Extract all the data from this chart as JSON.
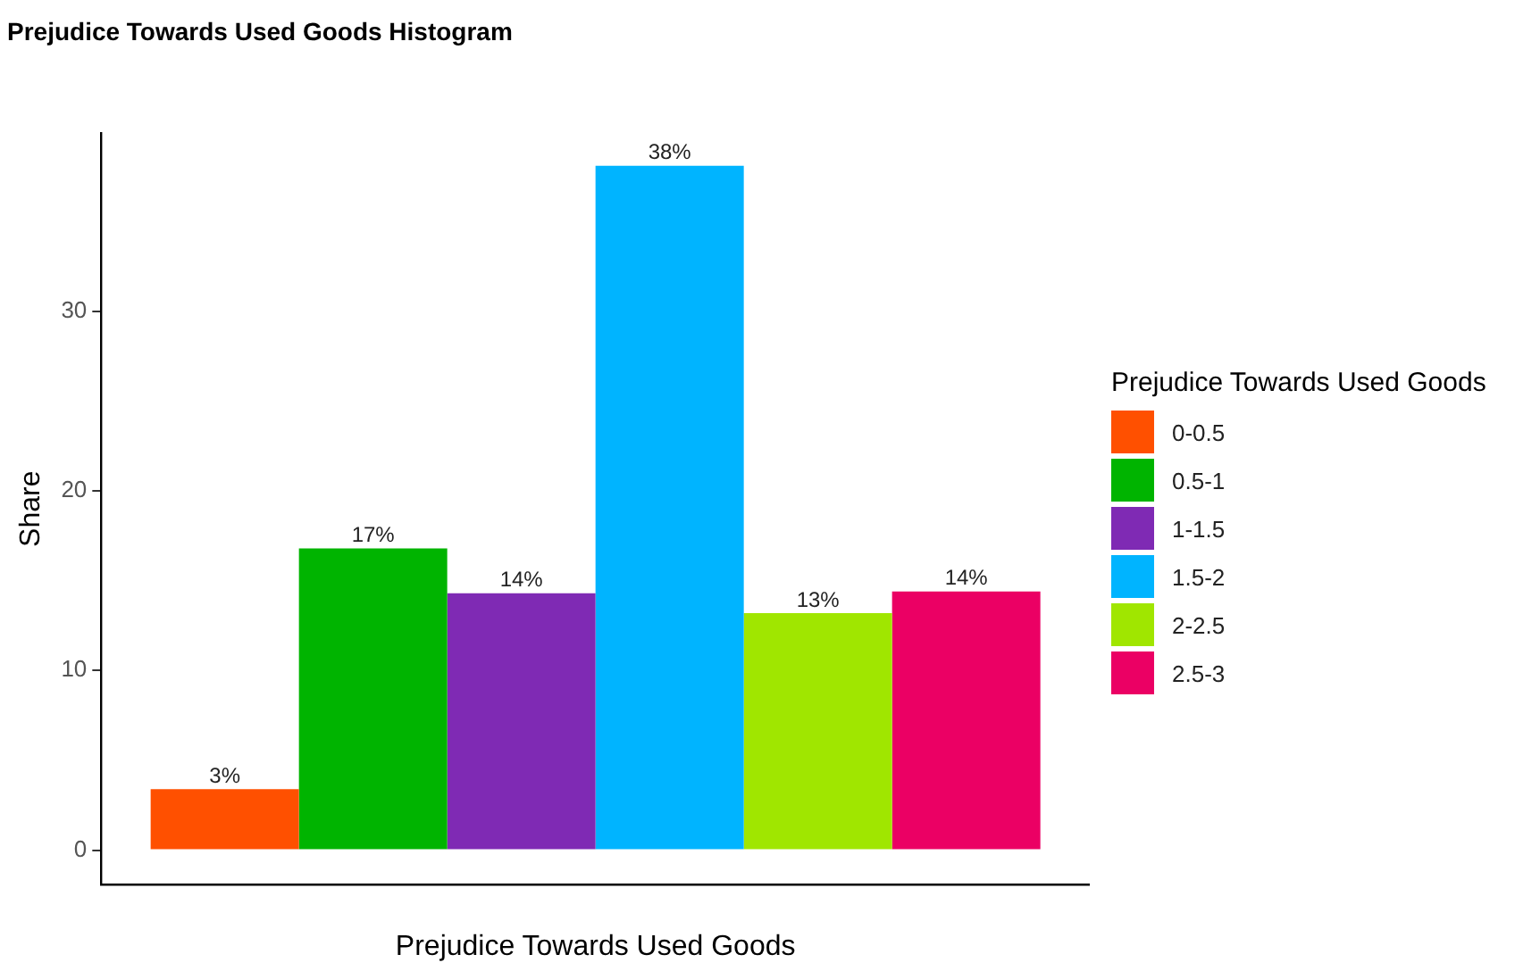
{
  "chart_data": {
    "type": "bar",
    "title": "Prejudice Towards Used Goods Histogram",
    "xlabel": "Prejudice Towards Used Goods",
    "ylabel": "Share",
    "legend_title": "Prejudice Towards Used Goods",
    "categories": [
      null
    ],
    "series": [
      {
        "name": "0-0.5",
        "color": "#ff5000",
        "values": [
          3.4
        ],
        "value_labels": [
          "3%"
        ]
      },
      {
        "name": "0.5-1",
        "color": "#00b400",
        "values": [
          16.8
        ],
        "value_labels": [
          "17%"
        ]
      },
      {
        "name": "1-1.5",
        "color": "#7f2ab4",
        "values": [
          14.3
        ],
        "value_labels": [
          "14%"
        ]
      },
      {
        "name": "1.5-2",
        "color": "#00b4ff",
        "values": [
          38.1
        ],
        "value_labels": [
          "38%"
        ]
      },
      {
        "name": "2-2.5",
        "color": "#a0e600",
        "values": [
          13.2
        ],
        "value_labels": [
          "13%"
        ]
      },
      {
        "name": "2.5-3",
        "color": "#eb0064",
        "values": [
          14.4
        ],
        "value_labels": [
          "14%"
        ]
      }
    ],
    "ylim": [
      -1.9,
      39.9
    ],
    "yticks": [
      0,
      10,
      20,
      30
    ],
    "grid": false,
    "legend": "right"
  }
}
